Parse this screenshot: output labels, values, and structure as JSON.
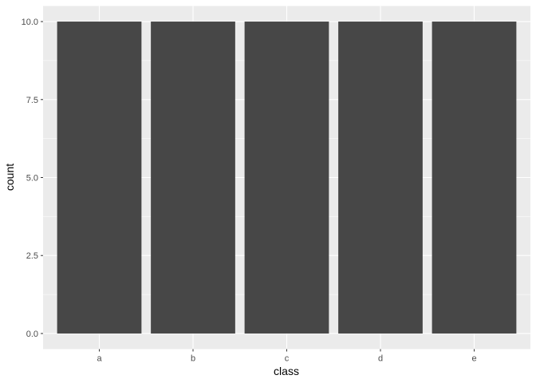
{
  "chart_data": {
    "type": "bar",
    "categories": [
      "a",
      "b",
      "c",
      "d",
      "e"
    ],
    "values": [
      10,
      10,
      10,
      10,
      10
    ],
    "title": "",
    "xlabel": "class",
    "ylabel": "count",
    "ylim": [
      0,
      10
    ],
    "yticks": [
      "0.0",
      "2.5",
      "5.0",
      "7.5",
      "10.0"
    ],
    "grid": true,
    "colors": {
      "bar": "#474747",
      "panel": "#EBEBEB",
      "grid": "#FFFFFF"
    }
  }
}
